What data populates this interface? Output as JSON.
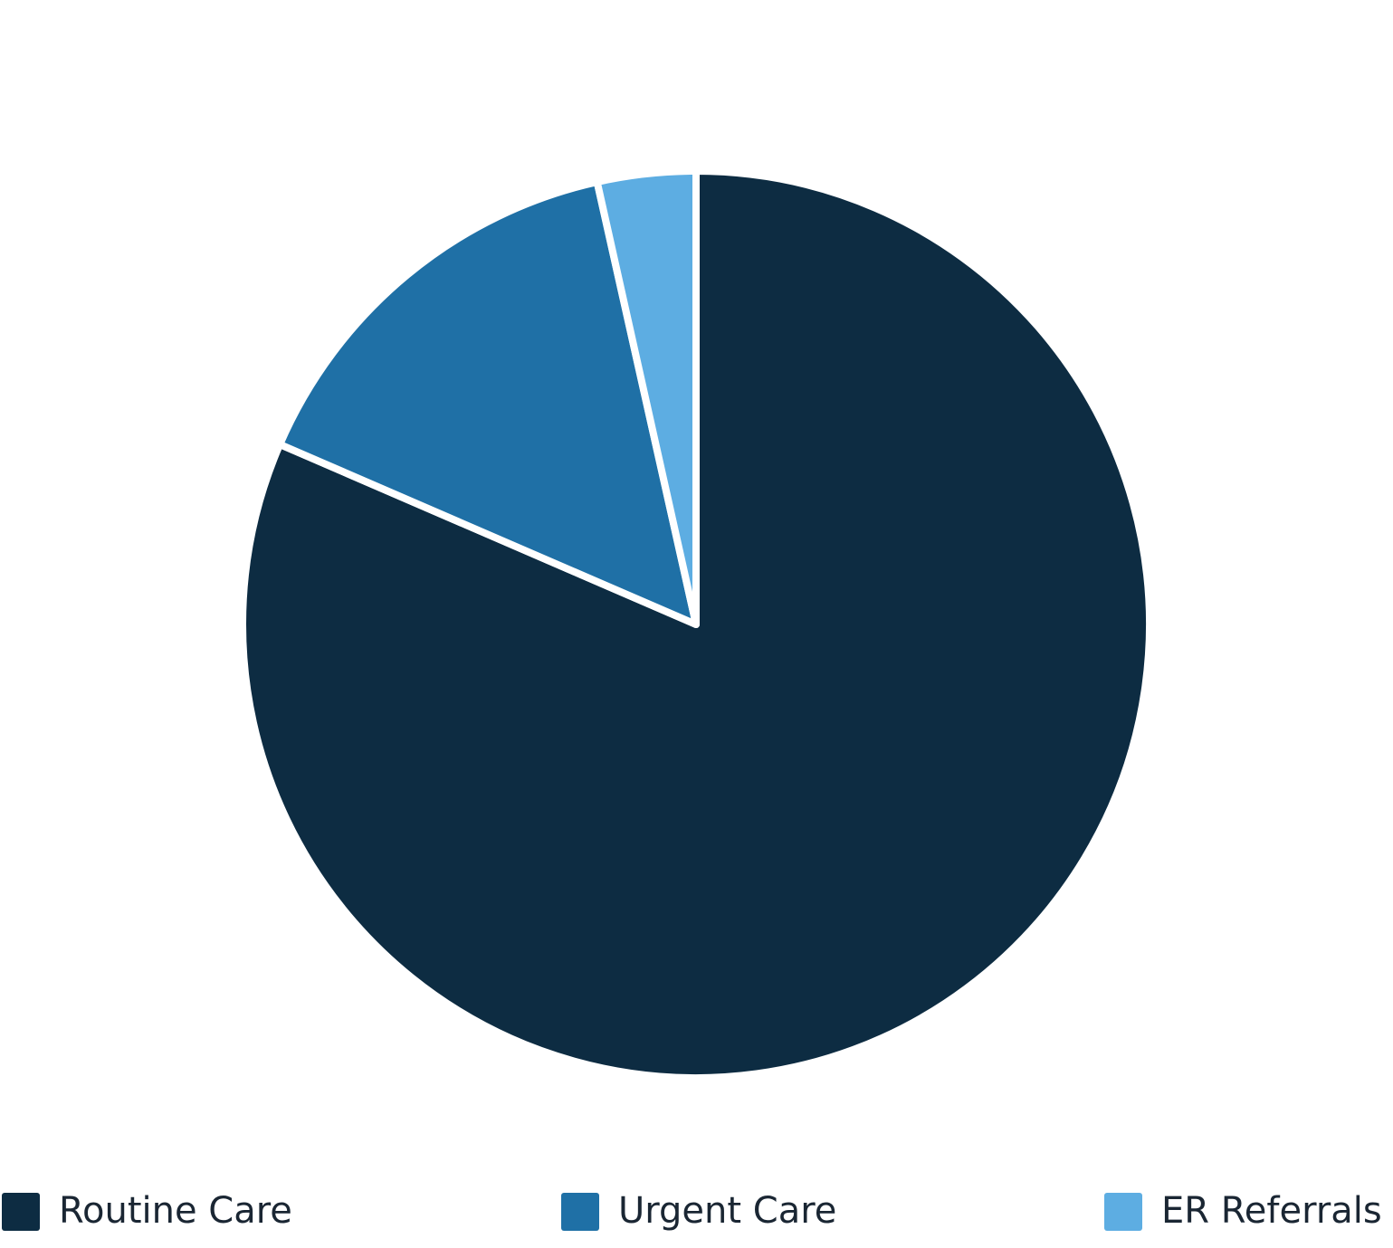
{
  "chart_data": {
    "type": "pie",
    "categories": [
      "Routine Care",
      "Urgent Care",
      "ER Referrals"
    ],
    "values": [
      81.5,
      15,
      3.5
    ],
    "colors": [
      "#0d2c42",
      "#1f70a6",
      "#5dade2"
    ]
  }
}
